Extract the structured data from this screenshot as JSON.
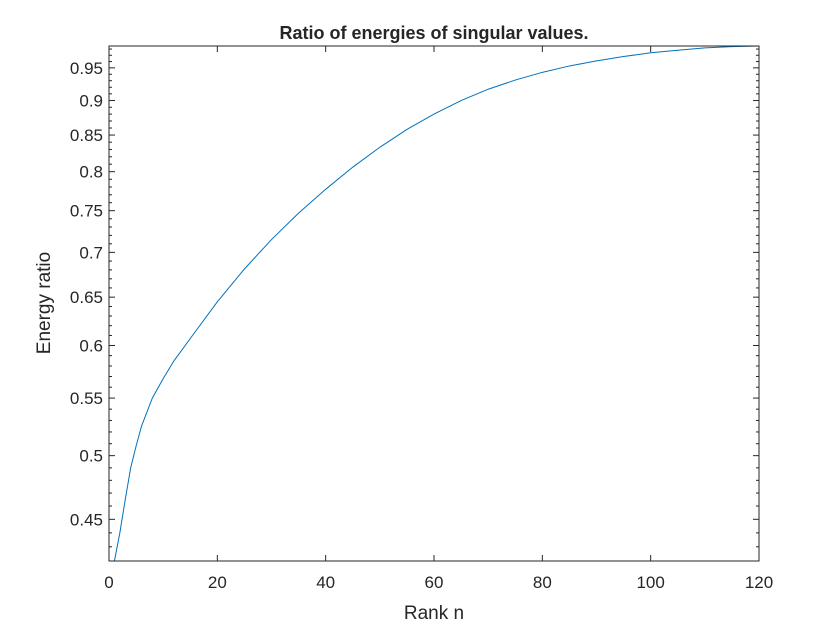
{
  "chart_data": {
    "type": "line",
    "title": "Ratio of energies of singular values.",
    "xlabel": "Rank n",
    "ylabel": "Energy ratio",
    "xlim": [
      0,
      120
    ],
    "ylim": [
      0.42,
      0.985
    ],
    "y_scale": "log",
    "grid": false,
    "x_ticks": [
      0,
      20,
      40,
      60,
      80,
      100,
      120
    ],
    "x_tick_labels": [
      "0",
      "20",
      "40",
      "60",
      "80",
      "100",
      "120"
    ],
    "y_ticks": [
      0.45,
      0.5,
      0.55,
      0.6,
      0.65,
      0.7,
      0.75,
      0.8,
      0.85,
      0.9,
      0.95
    ],
    "y_tick_labels": [
      "0.45",
      "0.5",
      "0.55",
      "0.6",
      "0.65",
      "0.7",
      "0.75",
      "0.8",
      "0.85",
      "0.9",
      "0.95"
    ],
    "series": [
      {
        "color": "#0072BD",
        "x": [
          1,
          2,
          3,
          4,
          5,
          6,
          8,
          10,
          12,
          15,
          20,
          25,
          30,
          35,
          40,
          45,
          50,
          55,
          60,
          65,
          70,
          75,
          80,
          85,
          90,
          95,
          100,
          105,
          110,
          115,
          120
        ],
        "y": [
          0.42,
          0.44,
          0.465,
          0.49,
          0.508,
          0.525,
          0.55,
          0.568,
          0.585,
          0.607,
          0.645,
          0.681,
          0.715,
          0.747,
          0.777,
          0.806,
          0.833,
          0.858,
          0.88,
          0.9,
          0.917,
          0.931,
          0.943,
          0.953,
          0.961,
          0.968,
          0.974,
          0.978,
          0.982,
          0.984,
          0.985
        ]
      }
    ]
  }
}
